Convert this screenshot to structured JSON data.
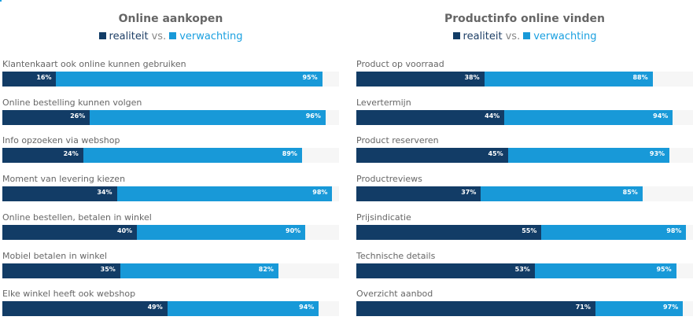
{
  "colors": {
    "realiteit": "#123c66",
    "verwachting": "#1899d8",
    "track": "#f6f6f6"
  },
  "legend": {
    "real": "realiteit",
    "vs": "vs.",
    "exp": "verwachting"
  },
  "chart_data": [
    {
      "type": "bar",
      "title": "Online aankopen",
      "series": [
        {
          "name": "realiteit",
          "values": [
            16,
            26,
            24,
            34,
            40,
            35,
            49
          ]
        },
        {
          "name": "verwachting",
          "values": [
            95,
            96,
            89,
            98,
            90,
            82,
            94
          ]
        }
      ],
      "categories": [
        "Klantenkaart ook online kunnen gebruiken",
        "Online bestelling kunnen volgen",
        "Info opzoeken via webshop",
        "Moment van levering kiezen",
        "Online bestellen, betalen in winkel",
        "Mobiel betalen in winkel",
        "Elke winkel heeft ook webshop"
      ],
      "value_labels": {
        "realiteit": [
          "16%",
          "26%",
          "24%",
          "34%",
          "40%",
          "35%",
          "49%"
        ],
        "verwachting": [
          "95%",
          "96%",
          "89%",
          "98%",
          "90%",
          "82%",
          "94%"
        ]
      },
      "xlim": [
        0,
        100
      ]
    },
    {
      "type": "bar",
      "title": "Productinfo online vinden",
      "series": [
        {
          "name": "realiteit",
          "values": [
            38,
            44,
            45,
            37,
            55,
            53,
            71
          ]
        },
        {
          "name": "verwachting",
          "values": [
            88,
            94,
            93,
            85,
            98,
            95,
            97
          ]
        }
      ],
      "categories": [
        "Product op voorraad",
        "Levertermijn",
        "Product reserveren",
        "Productreviews",
        "Prijsindicatie",
        "Technische details",
        "Overzicht aanbod"
      ],
      "value_labels": {
        "realiteit": [
          "38%",
          "44%",
          "45%",
          "37%",
          "55%",
          "53%",
          "71%"
        ],
        "verwachting": [
          "88%",
          "94%",
          "93%",
          "85%",
          "98%",
          "95%",
          "97%"
        ]
      },
      "xlim": [
        0,
        100
      ]
    }
  ]
}
